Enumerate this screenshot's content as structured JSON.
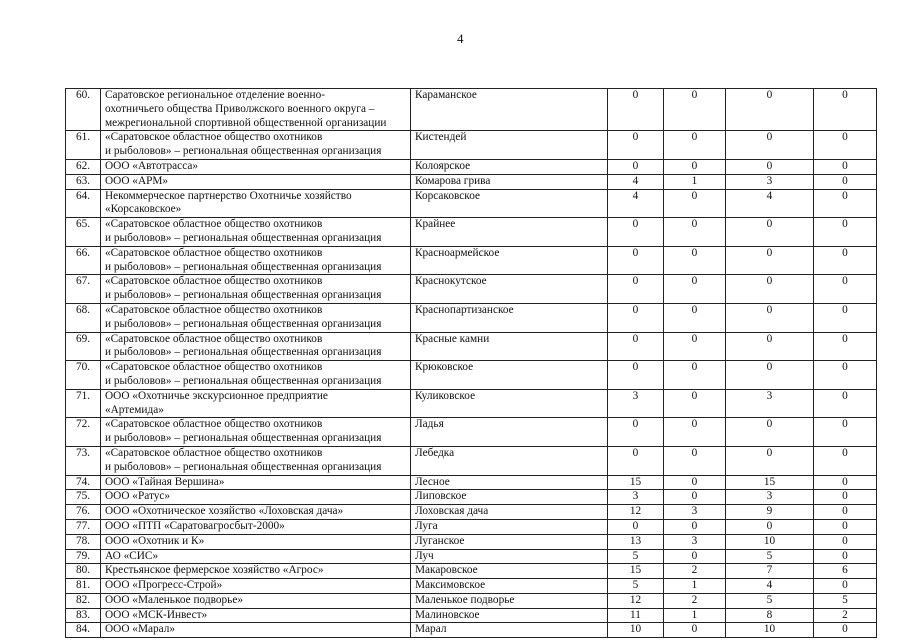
{
  "page_number": "4",
  "rows": [
    {
      "no": "60.",
      "org": "Саратовское региональное отделение военно-\nохотничьего общества Приволжского военного округа –\nмежрегиональной спортивной общественной организации",
      "land": "Караманское",
      "v": [
        "0",
        "0",
        "0",
        "0"
      ]
    },
    {
      "no": "61.",
      "org": "«Саратовское областное общество охотников\nи рыболовов» – региональная общественная организация",
      "land": "Кистендей",
      "v": [
        "0",
        "0",
        "0",
        "0"
      ]
    },
    {
      "no": "62.",
      "org": "ООО «Автотрасса»",
      "land": "Колоярское",
      "v": [
        "0",
        "0",
        "0",
        "0"
      ]
    },
    {
      "no": "63.",
      "org": "ООО «АРМ»",
      "land": "Комарова грива",
      "v": [
        "4",
        "1",
        "3",
        "0"
      ]
    },
    {
      "no": "64.",
      "org": "Некоммерческое партнерство Охотничье хозяйство\n«Корсаковское»",
      "land": "Корсаковское",
      "v": [
        "4",
        "0",
        "4",
        "0"
      ]
    },
    {
      "no": "65.",
      "org": "«Саратовское областное общество охотников\nи рыболовов» – региональная общественная организация",
      "land": "Крайнее",
      "v": [
        "0",
        "0",
        "0",
        "0"
      ]
    },
    {
      "no": "66.",
      "org": "«Саратовское областное общество охотников\nи рыболовов» – региональная общественная организация",
      "land": "Красноармейское",
      "v": [
        "0",
        "0",
        "0",
        "0"
      ]
    },
    {
      "no": "67.",
      "org": "«Саратовское областное общество охотников\nи рыболовов» – региональная общественная организация",
      "land": "Краснокутское",
      "v": [
        "0",
        "0",
        "0",
        "0"
      ]
    },
    {
      "no": "68.",
      "org": "«Саратовское областное общество охотников\nи рыболовов» – региональная общественная организация",
      "land": "Краснопартизанское",
      "v": [
        "0",
        "0",
        "0",
        "0"
      ]
    },
    {
      "no": "69.",
      "org": "«Саратовское областное общество охотников\nи рыболовов» – региональная общественная организация",
      "land": "Красные камни",
      "v": [
        "0",
        "0",
        "0",
        "0"
      ]
    },
    {
      "no": "70.",
      "org": "«Саратовское областное общество охотников\nи рыболовов» – региональная общественная организация",
      "land": "Крюковское",
      "v": [
        "0",
        "0",
        "0",
        "0"
      ]
    },
    {
      "no": "71.",
      "org": "ООО «Охотничье экскурсионное предприятие\n«Артемида»",
      "land": "Куликовское",
      "v": [
        "3",
        "0",
        "3",
        "0"
      ]
    },
    {
      "no": "72.",
      "org": "«Саратовское областное общество охотников\nи рыболовов» – региональная общественная организация",
      "land": "Ладья",
      "v": [
        "0",
        "0",
        "0",
        "0"
      ]
    },
    {
      "no": "73.",
      "org": "«Саратовское областное общество охотников\nи рыболовов» – региональная общественная организация",
      "land": "Лебедка",
      "v": [
        "0",
        "0",
        "0",
        "0"
      ]
    },
    {
      "no": "74.",
      "org": "ООО «Тайная Вершина»",
      "land": "Лесное",
      "v": [
        "15",
        "0",
        "15",
        "0"
      ]
    },
    {
      "no": "75.",
      "org": "ООО «Ратус»",
      "land": "Липовское",
      "v": [
        "3",
        "0",
        "3",
        "0"
      ]
    },
    {
      "no": "76.",
      "org": "ООО «Охотническое хозяйство «Лоховская дача»",
      "land": "Лоховская дача",
      "v": [
        "12",
        "3",
        "9",
        "0"
      ]
    },
    {
      "no": "77.",
      "org": "ООО «ПТП «Саратовагросбыт-2000»",
      "land": "Луга",
      "v": [
        "0",
        "0",
        "0",
        "0"
      ]
    },
    {
      "no": "78.",
      "org": "ООО «Охотник и К»",
      "land": "Луганское",
      "v": [
        "13",
        "3",
        "10",
        "0"
      ]
    },
    {
      "no": "79.",
      "org": "АО «СИС»",
      "land": "Луч",
      "v": [
        "5",
        "0",
        "5",
        "0"
      ]
    },
    {
      "no": "80.",
      "org": "Крестьянское фермерское хозяйство «Агрос»",
      "land": "Макаровское",
      "v": [
        "15",
        "2",
        "7",
        "6"
      ]
    },
    {
      "no": "81.",
      "org": "ООО «Прогресс-Строй»",
      "land": "Максимовское",
      "v": [
        "5",
        "1",
        "4",
        "0"
      ]
    },
    {
      "no": "82.",
      "org": "ООО «Маленькое подворье»",
      "land": "Маленькое подворье",
      "v": [
        "12",
        "2",
        "5",
        "5"
      ]
    },
    {
      "no": "83.",
      "org": "ООО «МСК-Инвест»",
      "land": "Малиновское",
      "v": [
        "11",
        "1",
        "8",
        "2"
      ]
    },
    {
      "no": "84.",
      "org": "ООО «Марал»",
      "land": "Марал",
      "v": [
        "10",
        "0",
        "10",
        "0"
      ]
    }
  ]
}
